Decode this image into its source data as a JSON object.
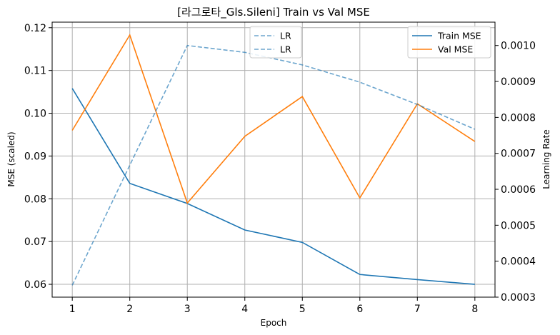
{
  "chart_data": {
    "type": "line",
    "title": "[라그로타_Gls.Sileni] Train vs Val MSE",
    "xlabel": "Epoch",
    "ylabel": "MSE (scaled)",
    "y2label": "Learning Rate",
    "x": [
      1,
      2,
      3,
      4,
      5,
      6,
      7,
      8
    ],
    "xlim": [
      0.65,
      8.35
    ],
    "ylim": [
      0.057,
      0.1213
    ],
    "y2lim": [
      0.0003,
      0.001065
    ],
    "yticks": [
      "0.06",
      "0.07",
      "0.08",
      "0.09",
      "0.10",
      "0.11",
      "0.12"
    ],
    "y2ticks": [
      "0.0003",
      "0.0004",
      "0.0005",
      "0.0006",
      "0.0007",
      "0.0008",
      "0.0009",
      "0.0010"
    ],
    "xticks": [
      "1",
      "2",
      "3",
      "4",
      "5",
      "6",
      "7",
      "8"
    ],
    "grid": true,
    "series": [
      {
        "name": "Train MSE",
        "axis": "left",
        "color": "#1f77b4",
        "style": "solid",
        "values": [
          0.1058,
          0.0836,
          0.0789,
          0.0727,
          0.0698,
          0.0623,
          0.0611,
          0.06
        ]
      },
      {
        "name": "Val MSE",
        "axis": "left",
        "color": "#ff7f0e",
        "style": "solid",
        "values": [
          0.096,
          0.1183,
          0.079,
          0.0946,
          0.1039,
          0.0802,
          0.1022,
          0.0934
        ]
      },
      {
        "name": "LR",
        "axis": "right",
        "color": "#1f77b4",
        "style": "dashed",
        "values": [
          0.000333,
          0.000667,
          0.001,
          0.000981,
          0.000946,
          0.000898,
          0.000836,
          0.000767
        ]
      }
    ],
    "legend_left": {
      "placement": "upper-center",
      "entries": [
        "LR",
        "LR"
      ]
    },
    "legend_right": {
      "placement": "upper-right",
      "entries": [
        "Train MSE",
        "Val MSE"
      ]
    }
  }
}
